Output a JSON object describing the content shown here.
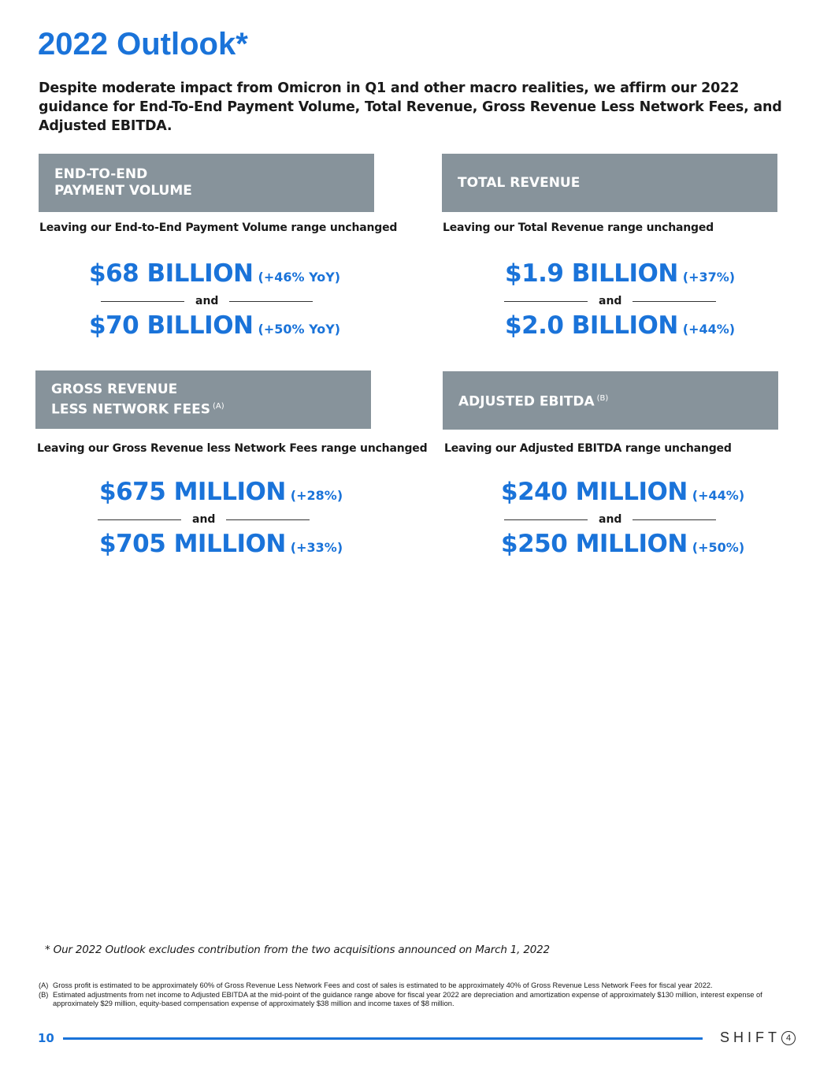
{
  "title": "2022 Outlook*",
  "subtitle": "Despite moderate impact from Omicron in Q1 and other macro realities, we affirm our 2022 guidance for End-To-End Payment Volume, Total Revenue, Gross Revenue Less Network Fees, and Adjusted EBITDA.",
  "panels": [
    {
      "header_line1": "END-TO-END",
      "header_line2": "PAYMENT VOLUME",
      "header_sup": "",
      "description": "Leaving our End-to-End Payment Volume range unchanged",
      "low_value": "$68 BILLION",
      "low_change": "(+46% YoY)",
      "connector": "and",
      "high_value": "$70 BILLION",
      "high_change": "(+50% YoY)"
    },
    {
      "header_line1": "TOTAL REVENUE",
      "header_line2": "",
      "header_sup": "",
      "description": "Leaving our Total Revenue range unchanged",
      "low_value": "$1.9 BILLION",
      "low_change": "(+37%)",
      "connector": "and",
      "high_value": "$2.0 BILLION",
      "high_change": "(+44%)"
    },
    {
      "header_line1": "GROSS REVENUE",
      "header_line2": "LESS NETWORK FEES",
      "header_sup": "(A)",
      "description": "Leaving our Gross Revenue less Network Fees range unchanged",
      "low_value": "$675 MILLION",
      "low_change": "(+28%)",
      "connector": "and",
      "high_value": "$705 MILLION",
      "high_change": "(+33%)"
    },
    {
      "header_line1": "ADJUSTED EBITDA",
      "header_line2": "",
      "header_sup": "(B)",
      "description": "Leaving our Adjusted EBITDA range unchanged",
      "low_value": "$240 MILLION",
      "low_change": "(+44%)",
      "connector": "and",
      "high_value": "$250 MILLION",
      "high_change": "(+50%)"
    }
  ],
  "outlook_note": "* Our 2022 Outlook excludes contribution from the two acquisitions announced on March 1, 2022",
  "footnotes": [
    {
      "mark": "(A)",
      "text": "Gross profit is estimated to be approximately 60% of Gross Revenue Less Network Fees and cost of sales is estimated to be approximately 40% of Gross Revenue Less Network Fees for fiscal year 2022."
    },
    {
      "mark": "(B)",
      "text": "Estimated adjustments from net income to Adjusted EBITDA at the mid-point of the guidance range above for fiscal year 2022 are depreciation and amortization expense of approximately $130 million, interest expense of approximately $29 million, equity-based compensation expense of approximately $38 million and income taxes of $8 million."
    }
  ],
  "page_number": "10",
  "logo": {
    "letters": "SHIFT",
    "badge": "4"
  },
  "colors": {
    "accent": "#1a73d9",
    "panel_header": "#87939b"
  }
}
